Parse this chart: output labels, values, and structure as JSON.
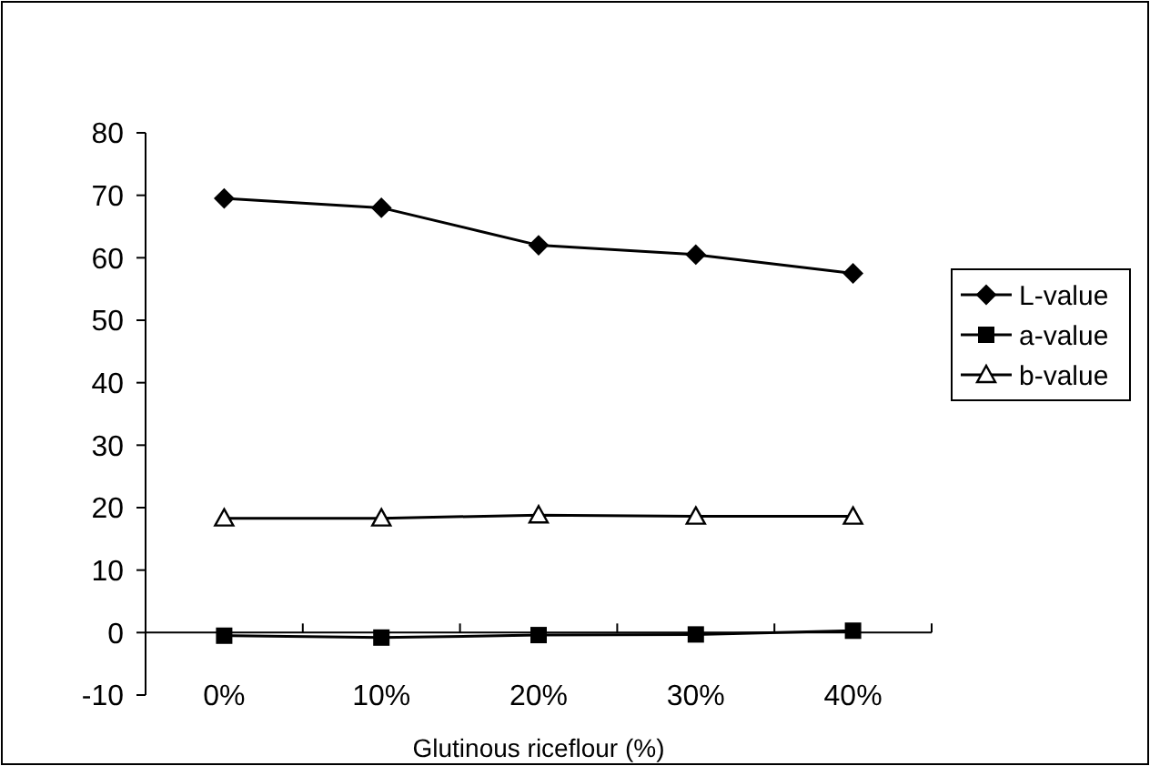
{
  "chart_data": {
    "type": "line",
    "xlabel": "Glutinous riceflour (%)",
    "categories": [
      "0%",
      "10%",
      "20%",
      "30%",
      "40%"
    ],
    "series": [
      {
        "name": "L-value",
        "color": "#000000",
        "marker": "diamond",
        "values": [
          69.5,
          68,
          62,
          60.5,
          57.5
        ]
      },
      {
        "name": "a-value",
        "color": "#000000",
        "marker": "square",
        "values": [
          -0.5,
          -0.8,
          -0.4,
          -0.3,
          0.3
        ]
      },
      {
        "name": "b-value",
        "color": "#000000",
        "marker": "triangle",
        "values": [
          18.3,
          18.3,
          18.8,
          18.6,
          18.6
        ]
      }
    ],
    "ylim": [
      -10,
      80
    ],
    "yticks": [
      -10,
      0,
      10,
      20,
      30,
      40,
      50,
      60,
      70,
      80
    ],
    "grid": false,
    "legend": "right",
    "line_style": "solid"
  }
}
